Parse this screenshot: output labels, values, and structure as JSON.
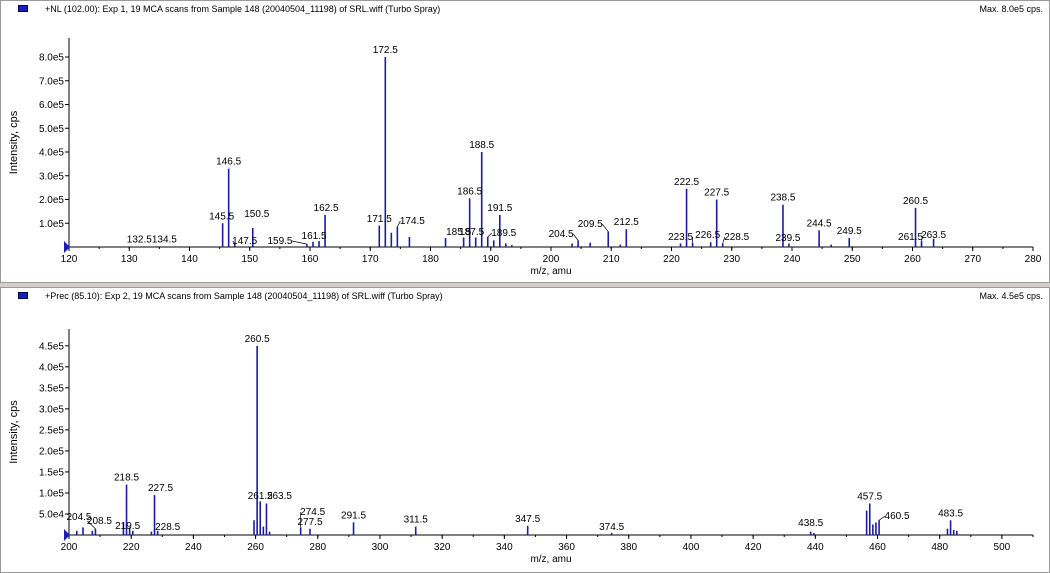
{
  "chart_data": [
    {
      "type": "bar",
      "legend_label": "+NL (102.00): Exp 1, 19 MCA scans from Sample 148 (20040504_11198) of SRL.wiff (Turbo Spray)",
      "max_label": "Max. 8.0e5 cps.",
      "xlabel": "m/z, amu",
      "ylabel": "Intensity, cps",
      "xlim": [
        120,
        280
      ],
      "ylim": [
        0,
        880000
      ],
      "x_ticks": [
        120,
        130,
        140,
        150,
        160,
        170,
        180,
        190,
        200,
        210,
        220,
        230,
        240,
        250,
        260,
        270,
        280
      ],
      "y_ticks": [
        {
          "v": 100000,
          "t": "1.0e5"
        },
        {
          "v": 200000,
          "t": "2.0e5"
        },
        {
          "v": 300000,
          "t": "3.0e5"
        },
        {
          "v": 400000,
          "t": "4.0e5"
        },
        {
          "v": 500000,
          "t": "5.0e5"
        },
        {
          "v": 600000,
          "t": "6.0e5"
        },
        {
          "v": 700000,
          "t": "7.0e5"
        },
        {
          "v": 800000,
          "t": "8.0e5"
        }
      ],
      "peaks": [
        {
          "x": 132.5,
          "y": 3000
        },
        {
          "x": 134.5,
          "y": 3000
        },
        {
          "x": 145.5,
          "y": 100000
        },
        {
          "x": 146.5,
          "y": 330000
        },
        {
          "x": 147.5,
          "y": 15000
        },
        {
          "x": 150.5,
          "y": 80000
        },
        {
          "x": 159.5,
          "y": 12000
        },
        {
          "x": 160.5,
          "y": 22000
        },
        {
          "x": 161.5,
          "y": 25000
        },
        {
          "x": 162.5,
          "y": 135000
        },
        {
          "x": 171.5,
          "y": 90000
        },
        {
          "x": 172.5,
          "y": 800000
        },
        {
          "x": 173.5,
          "y": 60000
        },
        {
          "x": 174.5,
          "y": 85000
        },
        {
          "x": 176.5,
          "y": 42000
        },
        {
          "x": 182.5,
          "y": 38000
        },
        {
          "x": 185.5,
          "y": 40000
        },
        {
          "x": 186.5,
          "y": 205000
        },
        {
          "x": 187.5,
          "y": 40000
        },
        {
          "x": 188.5,
          "y": 400000
        },
        {
          "x": 189.5,
          "y": 42000
        },
        {
          "x": 190.5,
          "y": 28000
        },
        {
          "x": 191.5,
          "y": 135000
        },
        {
          "x": 192.5,
          "y": 15000
        },
        {
          "x": 193.5,
          "y": 8000
        },
        {
          "x": 203.5,
          "y": 15000
        },
        {
          "x": 204.5,
          "y": 28000
        },
        {
          "x": 206.5,
          "y": 18000
        },
        {
          "x": 209.5,
          "y": 65000
        },
        {
          "x": 211.5,
          "y": 10000
        },
        {
          "x": 212.5,
          "y": 75000
        },
        {
          "x": 221.5,
          "y": 15000
        },
        {
          "x": 222.5,
          "y": 245000
        },
        {
          "x": 223.5,
          "y": 18000
        },
        {
          "x": 226.5,
          "y": 20000
        },
        {
          "x": 227.5,
          "y": 200000
        },
        {
          "x": 228.5,
          "y": 15000
        },
        {
          "x": 238.5,
          "y": 178000
        },
        {
          "x": 239.5,
          "y": 15000
        },
        {
          "x": 244.5,
          "y": 70000
        },
        {
          "x": 246.5,
          "y": 10000
        },
        {
          "x": 249.5,
          "y": 38000
        },
        {
          "x": 260.5,
          "y": 165000
        },
        {
          "x": 261.5,
          "y": 25000
        },
        {
          "x": 263.5,
          "y": 35000
        }
      ],
      "labels": [
        {
          "x": 132.5,
          "t": "132.5"
        },
        {
          "x": 134.5,
          "t": "134.5"
        },
        {
          "x": 145.5,
          "t": "145.5"
        },
        {
          "x": 146.5,
          "t": "146.5"
        },
        {
          "x": 147.5,
          "t": "147.5"
        },
        {
          "x": 150.5,
          "t": "150.5"
        },
        {
          "x": 159.5,
          "t": "159.5"
        },
        {
          "x": 161.5,
          "t": "161.5"
        },
        {
          "x": 162.5,
          "t": "162.5"
        },
        {
          "x": 171.5,
          "t": "171.5"
        },
        {
          "x": 172.5,
          "t": "172.5"
        },
        {
          "x": 174.5,
          "t": "174.5"
        },
        {
          "x": 185.5,
          "t": "185.5"
        },
        {
          "x": 186.5,
          "t": "186.5"
        },
        {
          "x": 187.5,
          "t": "187.5"
        },
        {
          "x": 188.5,
          "t": "188.5"
        },
        {
          "x": 189.5,
          "t": "189.5"
        },
        {
          "x": 191.5,
          "t": "191.5"
        },
        {
          "x": 204.5,
          "t": "204.5"
        },
        {
          "x": 209.5,
          "t": "209.5"
        },
        {
          "x": 212.5,
          "t": "212.5"
        },
        {
          "x": 222.5,
          "t": "222.5"
        },
        {
          "x": 223.5,
          "t": "223.5"
        },
        {
          "x": 226.5,
          "t": "226.5"
        },
        {
          "x": 227.5,
          "t": "227.5"
        },
        {
          "x": 228.5,
          "t": "228.5"
        },
        {
          "x": 238.5,
          "t": "238.5"
        },
        {
          "x": 239.5,
          "t": "239.5"
        },
        {
          "x": 244.5,
          "t": "244.5"
        },
        {
          "x": 249.5,
          "t": "249.5"
        },
        {
          "x": 260.5,
          "t": "260.5"
        },
        {
          "x": 261.5,
          "t": "261.5"
        },
        {
          "x": 263.5,
          "t": "263.5"
        }
      ]
    },
    {
      "type": "bar",
      "legend_label": "+Prec (85.10): Exp 2, 19 MCA scans from Sample 148 (20040504_11198) of SRL.wiff (Turbo Spray)",
      "max_label": "Max. 4.5e5 cps.",
      "xlabel": "m/z, amu",
      "ylabel": "Intensity, cps",
      "xlim": [
        200,
        510
      ],
      "ylim": [
        0,
        490000
      ],
      "x_ticks": [
        200,
        220,
        240,
        260,
        280,
        300,
        320,
        340,
        360,
        380,
        400,
        420,
        440,
        460,
        480,
        500
      ],
      "y_ticks": [
        {
          "v": 50000,
          "t": "5.0e4"
        },
        {
          "v": 100000,
          "t": "1.0e5"
        },
        {
          "v": 150000,
          "t": "1.5e5"
        },
        {
          "v": 200000,
          "t": "2.0e5"
        },
        {
          "v": 250000,
          "t": "2.5e5"
        },
        {
          "v": 300000,
          "t": "3.0e5"
        },
        {
          "v": 350000,
          "t": "3.5e5"
        },
        {
          "v": 400000,
          "t": "4.0e5"
        },
        {
          "v": 450000,
          "t": "4.5e5"
        }
      ],
      "peaks": [
        {
          "x": 202.5,
          "y": 10000
        },
        {
          "x": 204.5,
          "y": 18000
        },
        {
          "x": 207.5,
          "y": 10000
        },
        {
          "x": 208.5,
          "y": 15000
        },
        {
          "x": 217.5,
          "y": 30000
        },
        {
          "x": 218.5,
          "y": 120000
        },
        {
          "x": 219.5,
          "y": 18000
        },
        {
          "x": 220.5,
          "y": 10000
        },
        {
          "x": 226.5,
          "y": 8000
        },
        {
          "x": 227.5,
          "y": 95000
        },
        {
          "x": 228.5,
          "y": 10000
        },
        {
          "x": 259.5,
          "y": 35000
        },
        {
          "x": 260.5,
          "y": 450000
        },
        {
          "x": 261.5,
          "y": 80000
        },
        {
          "x": 262.5,
          "y": 20000
        },
        {
          "x": 263.5,
          "y": 75000
        },
        {
          "x": 264.5,
          "y": 8000
        },
        {
          "x": 274.5,
          "y": 18000
        },
        {
          "x": 277.5,
          "y": 15000
        },
        {
          "x": 291.5,
          "y": 30000
        },
        {
          "x": 311.5,
          "y": 20000
        },
        {
          "x": 347.5,
          "y": 22000
        },
        {
          "x": 374.5,
          "y": 5000
        },
        {
          "x": 438.5,
          "y": 8000
        },
        {
          "x": 439.5,
          "y": 5000
        },
        {
          "x": 456.5,
          "y": 58000
        },
        {
          "x": 457.5,
          "y": 75000
        },
        {
          "x": 458.5,
          "y": 25000
        },
        {
          "x": 459.5,
          "y": 30000
        },
        {
          "x": 460.5,
          "y": 35000
        },
        {
          "x": 482.5,
          "y": 15000
        },
        {
          "x": 483.5,
          "y": 35000
        },
        {
          "x": 484.5,
          "y": 12000
        },
        {
          "x": 485.5,
          "y": 10000
        }
      ],
      "labels": [
        {
          "x": 204.5,
          "t": "204.5"
        },
        {
          "x": 208.5,
          "t": "208.5"
        },
        {
          "x": 218.5,
          "t": "218.5"
        },
        {
          "x": 219.5,
          "t": "219.5"
        },
        {
          "x": 227.5,
          "t": "227.5"
        },
        {
          "x": 228.5,
          "t": "228.5"
        },
        {
          "x": 260.5,
          "t": "260.5"
        },
        {
          "x": 261.5,
          "t": "261.5"
        },
        {
          "x": 263.5,
          "t": "263.5"
        },
        {
          "x": 274.5,
          "t": "274.5"
        },
        {
          "x": 277.5,
          "t": "277.5"
        },
        {
          "x": 291.5,
          "t": "291.5"
        },
        {
          "x": 311.5,
          "t": "311.5"
        },
        {
          "x": 347.5,
          "t": "347.5"
        },
        {
          "x": 374.5,
          "t": "374.5"
        },
        {
          "x": 438.5,
          "t": "438.5"
        },
        {
          "x": 457.5,
          "t": "457.5"
        },
        {
          "x": 460.5,
          "t": "460.5"
        },
        {
          "x": 483.5,
          "t": "483.5"
        }
      ]
    }
  ],
  "colors": {
    "peak": "#1c1c9c",
    "marker": "#1c1cb8"
  }
}
